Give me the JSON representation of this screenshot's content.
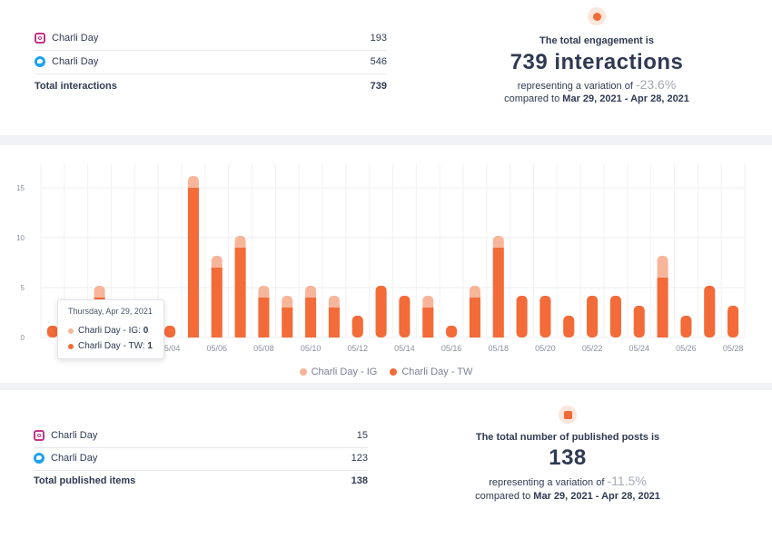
{
  "engagement": {
    "rows": [
      {
        "network": "instagram",
        "icon": "instagram-icon",
        "name": "Charli Day",
        "value": "193"
      },
      {
        "network": "twitter",
        "icon": "twitter-icon",
        "name": "Charli Day",
        "value": "546"
      }
    ],
    "total_label": "Total interactions",
    "total_value": "739",
    "summary": {
      "icon": "chat-bubble-icon",
      "title": "The total engagement is",
      "big": "739 interactions",
      "variation_prefix": "representing a variation of",
      "variation_value": "-23.6%",
      "compared_prefix": "compared to",
      "compared_range": "Mar 29, 2021 - Apr 28, 2021"
    }
  },
  "chart_data": {
    "type": "bar",
    "stacked": true,
    "categories": [
      "04/29",
      "04/30",
      "05/01",
      "05/02",
      "05/03",
      "05/04",
      "05/05",
      "05/06",
      "05/07",
      "05/08",
      "05/09",
      "05/10",
      "05/11",
      "05/12",
      "05/13",
      "05/14",
      "05/15",
      "05/16",
      "05/17",
      "05/18",
      "05/19",
      "05/20",
      "05/21",
      "05/22",
      "05/23",
      "05/24",
      "05/25",
      "05/26",
      "05/27",
      "05/28"
    ],
    "tick_labels": [
      "05/04",
      "05/06",
      "05/08",
      "05/10",
      "05/12",
      "05/14",
      "05/16",
      "05/18",
      "05/20",
      "05/22",
      "05/24",
      "05/26",
      "05/28"
    ],
    "series": [
      {
        "name": "Charli Day - TW",
        "color": "#f26b38",
        "values": [
          1,
          0,
          4,
          0,
          0,
          1,
          15,
          7,
          9,
          4,
          3,
          4,
          3,
          2,
          5,
          4,
          3,
          1,
          4,
          9,
          4,
          4,
          2,
          4,
          4,
          3,
          6,
          2,
          5,
          3
        ]
      },
      {
        "name": "Charli Day - IG",
        "color": "#f7b59a",
        "values": [
          0,
          0,
          1,
          0,
          0,
          0,
          1,
          1,
          1,
          1,
          1,
          1,
          1,
          0,
          0,
          0,
          1,
          0,
          1,
          1,
          0,
          0,
          0,
          0,
          0,
          0,
          2,
          0,
          0,
          0
        ]
      }
    ],
    "yticks": [
      0,
      5,
      10,
      15
    ],
    "ylim": [
      0,
      17
    ],
    "legend": "bottom-center",
    "grid": true
  },
  "tooltip": {
    "date": "Thursday, Apr 29, 2021",
    "rows": [
      {
        "label": "Charli Day - IG:",
        "value": "0",
        "color": "#f7b59a"
      },
      {
        "label": "Charli Day - TW:",
        "value": "1",
        "color": "#f26b38"
      }
    ]
  },
  "legend": [
    {
      "label": "Charli Day - IG",
      "color": "#f7b59a"
    },
    {
      "label": "Charli Day - TW",
      "color": "#f26b38"
    }
  ],
  "posts": {
    "rows": [
      {
        "network": "instagram",
        "icon": "instagram-icon",
        "name": "Charli Day",
        "value": "15"
      },
      {
        "network": "twitter",
        "icon": "twitter-icon",
        "name": "Charli Day",
        "value": "123"
      }
    ],
    "total_label": "Total published items",
    "total_value": "138",
    "summary": {
      "icon": "image-icon",
      "title": "The total number of published posts is",
      "big": "138",
      "variation_prefix": "representing a variation of",
      "variation_value": "-11.5%",
      "compared_prefix": "compared to",
      "compared_range": "Mar 29, 2021 - Apr 28, 2021"
    }
  }
}
